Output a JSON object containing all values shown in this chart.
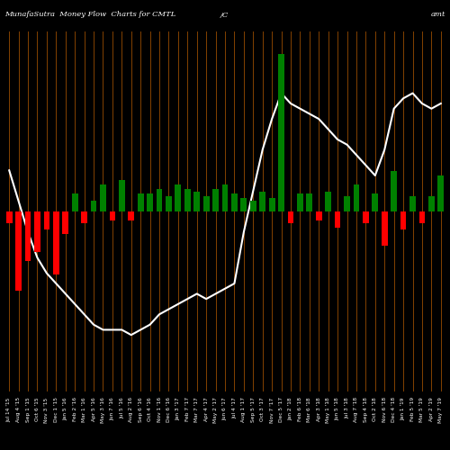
{
  "title_left": "MunafaSutra  Money Flow  Charts for CMTL",
  "title_center": "/C",
  "title_right": "amt",
  "background_color": "#000000",
  "line_color": "#ffffff",
  "grid_color": "#8B4500",
  "categories": [
    "Jul 14 '15",
    "Aug 4 '15",
    "Sep 1 '15",
    "Oct 6 '15",
    "Nov 3 '15",
    "Dec 1 '15",
    "Jan 5 '16",
    "Feb 2 '16",
    "Mar 1 '16",
    "Apr 5 '16",
    "May 3 '16",
    "Jun 7 '16",
    "Jul 5 '16",
    "Aug 2 '16",
    "Sep 6 '16",
    "Oct 4 '16",
    "Nov 1 '16",
    "Dec 6 '16",
    "Jan 3 '17",
    "Feb 7 '17",
    "Mar 7 '17",
    "Apr 4 '17",
    "May 2 '17",
    "Jun 6 '17",
    "Jul 4 '17",
    "Aug 1 '17",
    "Sep 5 '17",
    "Oct 3 '17",
    "Nov 7 '17",
    "Dec 5 '17",
    "Jan 2 '18",
    "Feb 6 '18",
    "Mar 6 '18",
    "Apr 3 '18",
    "May 1 '18",
    "Jun 5 '18",
    "Jul 3 '18",
    "Aug 7 '18",
    "Sep 4 '18",
    "Oct 2 '18",
    "Nov 6 '18",
    "Dec 4 '18",
    "Jan 1 '19",
    "Feb 5 '19",
    "Mar 5 '19",
    "Apr 2 '19",
    "May 7 '19"
  ],
  "bar_values": [
    -5,
    -35,
    -22,
    -18,
    -8,
    -28,
    -10,
    8,
    -5,
    5,
    12,
    -4,
    14,
    -4,
    8,
    8,
    10,
    7,
    12,
    10,
    9,
    7,
    10,
    12,
    8,
    6,
    5,
    9,
    6,
    70,
    -5,
    8,
    8,
    -4,
    9,
    -7,
    7,
    12,
    -5,
    8,
    -15,
    18,
    -8,
    7,
    -5,
    7,
    16
  ],
  "bar_colors": [
    "red",
    "red",
    "red",
    "red",
    "red",
    "red",
    "red",
    "green",
    "red",
    "green",
    "green",
    "red",
    "green",
    "red",
    "green",
    "green",
    "green",
    "green",
    "green",
    "green",
    "green",
    "green",
    "green",
    "green",
    "green",
    "green",
    "green",
    "green",
    "green",
    "green",
    "red",
    "green",
    "green",
    "red",
    "green",
    "red",
    "green",
    "green",
    "red",
    "green",
    "red",
    "green",
    "red",
    "green",
    "red",
    "green",
    "green"
  ],
  "line_values": [
    58,
    52,
    46,
    41,
    38,
    36,
    34,
    32,
    30,
    28,
    27,
    27,
    27,
    26,
    27,
    28,
    30,
    31,
    32,
    33,
    34,
    33,
    34,
    35,
    36,
    46,
    54,
    62,
    68,
    73,
    71,
    70,
    69,
    68,
    66,
    64,
    63,
    61,
    59,
    57,
    62,
    70,
    72,
    73,
    71,
    70,
    71
  ],
  "bar_ylim": [
    -80,
    80
  ],
  "line_ylim": [
    15,
    85
  ]
}
